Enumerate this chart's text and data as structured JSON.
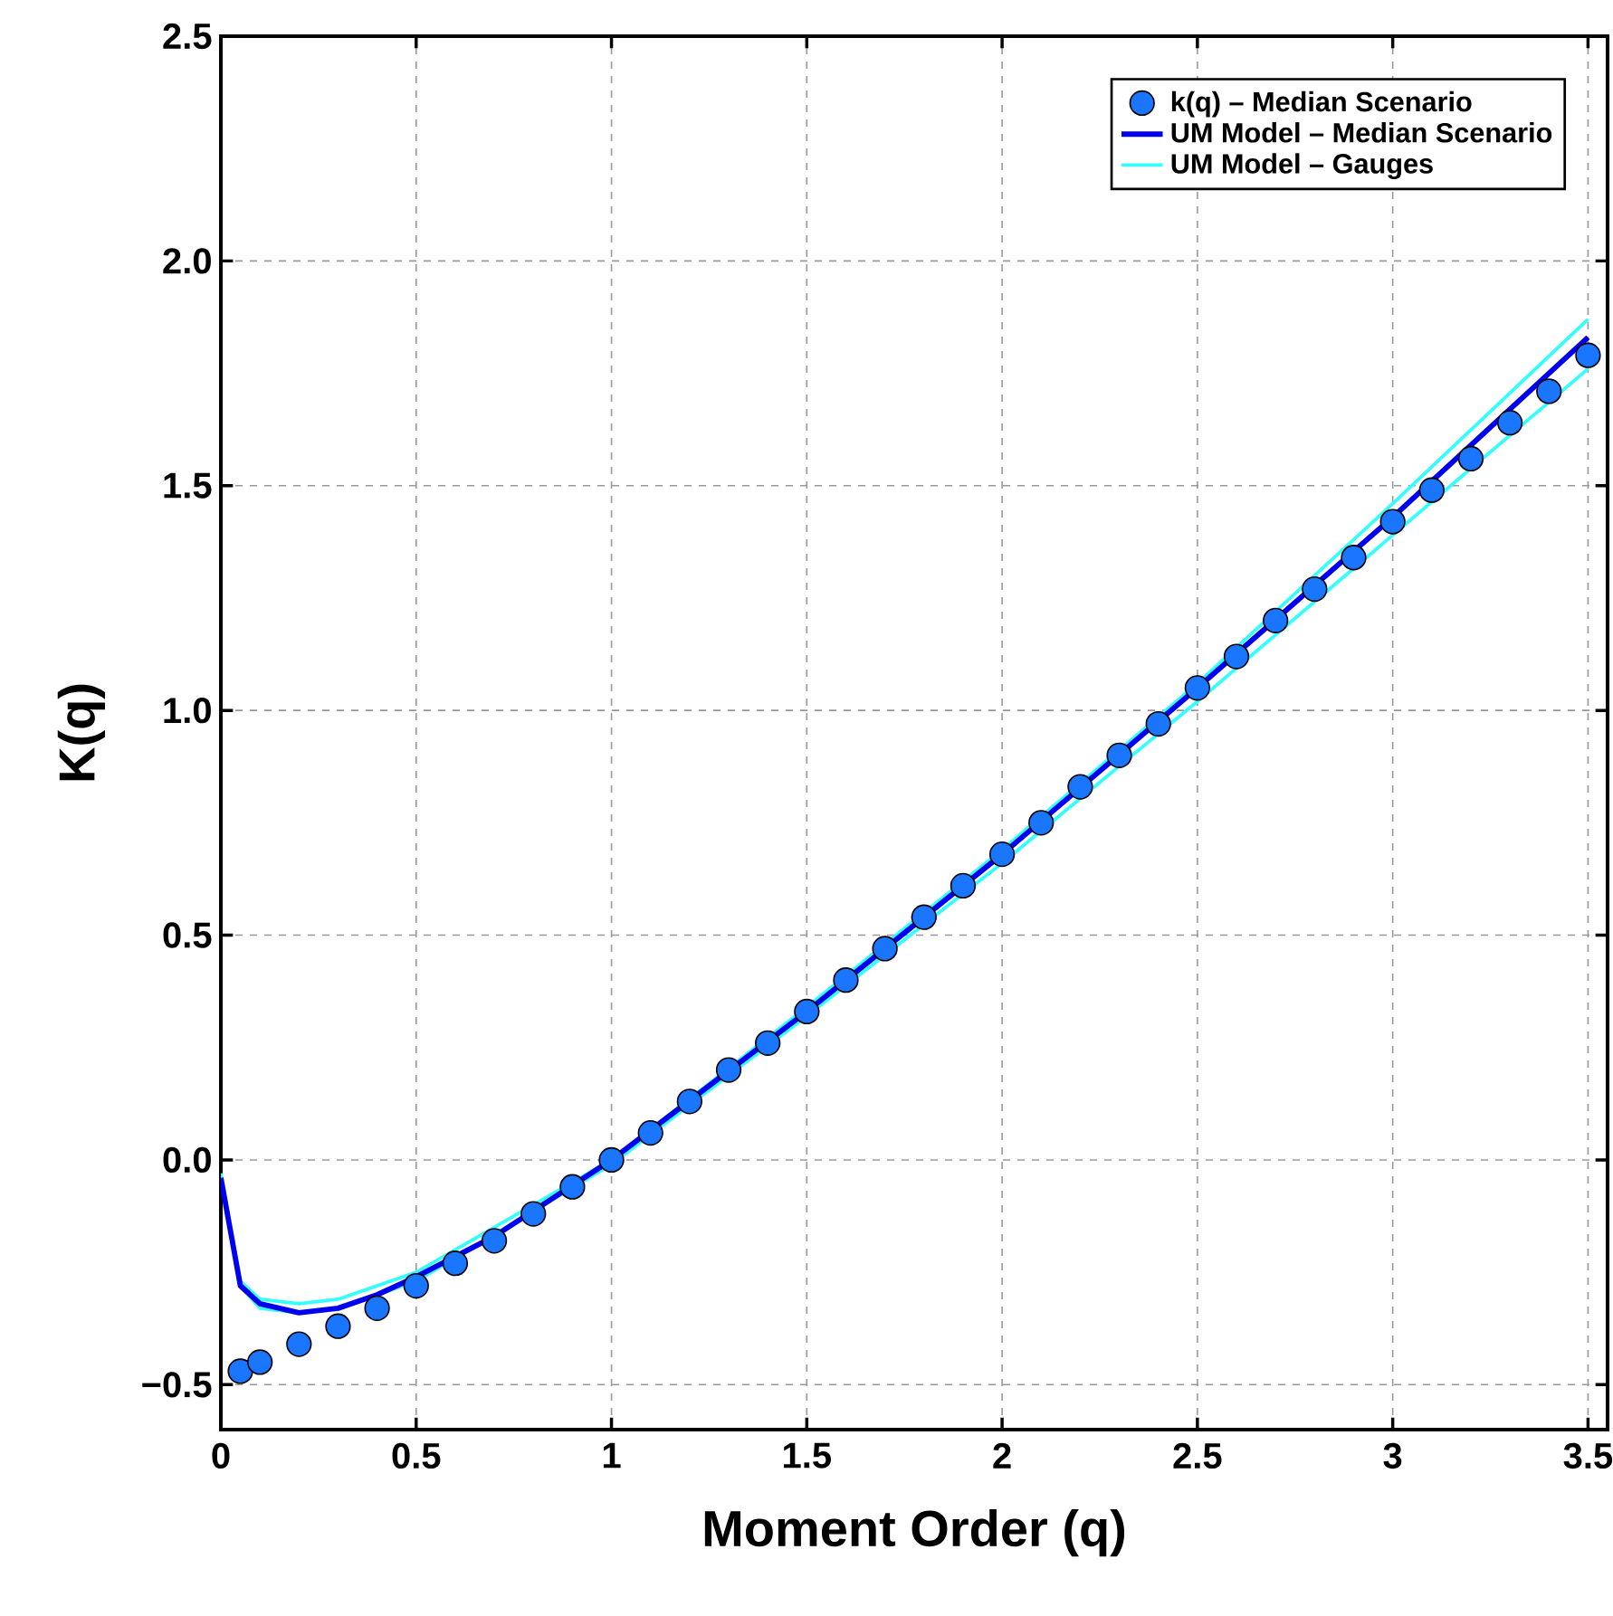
{
  "chart_data": {
    "type": "line",
    "xlabel": "Moment Order (q)",
    "ylabel": "K(q)",
    "xlim": [
      0,
      3.55
    ],
    "ylim": [
      -0.6,
      2.5
    ],
    "xticks": [
      0,
      0.5,
      1,
      1.5,
      2,
      2.5,
      3,
      3.5
    ],
    "yticks": [
      {
        "value": -0.5,
        "label": "−0.5"
      },
      {
        "value": 0,
        "label": "0.0"
      },
      {
        "value": 0.5,
        "label": "0.5"
      },
      {
        "value": 1,
        "label": "1.0"
      },
      {
        "value": 1.5,
        "label": "1.5"
      },
      {
        "value": 2,
        "label": "2.0"
      },
      {
        "value": 2.5,
        "label": "2.5"
      }
    ],
    "grid": true,
    "legend": "top right",
    "series": [
      {
        "name": "k(q) – Median Scenario",
        "type": "scatter",
        "color": "#1a75ff",
        "x": [
          0.05,
          0.1,
          0.2,
          0.3,
          0.4,
          0.5,
          0.6,
          0.7,
          0.8,
          0.9,
          1.0,
          1.1,
          1.2,
          1.3,
          1.4,
          1.5,
          1.6,
          1.7,
          1.8,
          1.9,
          2.0,
          2.1,
          2.2,
          2.3,
          2.4,
          2.5,
          2.6,
          2.7,
          2.8,
          2.9,
          3.0,
          3.1,
          3.2,
          3.3,
          3.4,
          3.5
        ],
        "values": [
          -0.47,
          -0.45,
          -0.41,
          -0.37,
          -0.33,
          -0.28,
          -0.23,
          -0.18,
          -0.12,
          -0.06,
          0.0,
          0.06,
          0.13,
          0.2,
          0.26,
          0.33,
          0.4,
          0.47,
          0.54,
          0.61,
          0.68,
          0.75,
          0.83,
          0.9,
          0.97,
          1.05,
          1.12,
          1.2,
          1.27,
          1.34,
          1.42,
          1.49,
          1.56,
          1.64,
          1.71,
          1.79
        ]
      },
      {
        "name": "UM Model – Median Scenario",
        "type": "line",
        "color": "#0000ee",
        "x": [
          0,
          0.05,
          0.1,
          0.2,
          0.3,
          0.4,
          0.5,
          0.7,
          1.0,
          1.5,
          2.0,
          2.5,
          3.0,
          3.5
        ],
        "values": [
          -0.04,
          -0.28,
          -0.32,
          -0.34,
          -0.33,
          -0.3,
          -0.26,
          -0.17,
          0.0,
          0.33,
          0.68,
          1.05,
          1.43,
          1.83
        ]
      },
      {
        "name": "UM Model – Gauges",
        "type": "line",
        "color": "#33ffff",
        "x": [
          0,
          0.05,
          0.1,
          0.2,
          0.3,
          0.5,
          1.0,
          1.5,
          2.0,
          2.5,
          3.0,
          3.5
        ],
        "values": [
          -0.03,
          -0.27,
          -0.31,
          -0.32,
          -0.31,
          -0.25,
          0.0,
          0.34,
          0.69,
          1.06,
          1.46,
          1.87
        ]
      },
      {
        "type": "line",
        "color": "#33ffff",
        "x": [
          0,
          0.05,
          0.1,
          0.2,
          0.3,
          0.5,
          1.0,
          1.5,
          2.0,
          2.5,
          3.0,
          3.5
        ],
        "values": [
          -0.04,
          -0.28,
          -0.33,
          -0.34,
          -0.33,
          -0.27,
          -0.01,
          0.32,
          0.66,
          1.02,
          1.39,
          1.76
        ]
      }
    ]
  }
}
